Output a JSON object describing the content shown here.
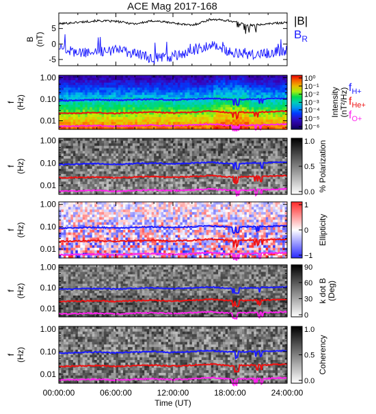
{
  "title": "ACE Mag 2017-168",
  "xaxis": {
    "label": "Time (UT)",
    "ticks": [
      "00:00:00",
      "06:00:00",
      "12:00:00",
      "18:00:00",
      "24:00:00"
    ],
    "range_hours": [
      0,
      24
    ]
  },
  "panels": [
    {
      "id": "b",
      "ylabel": "B",
      "yunit": "(nT)",
      "yticks": [
        "5",
        "0",
        "-5"
      ],
      "legend": [
        {
          "text": "|B|",
          "sub": "",
          "color": "#000000"
        },
        {
          "text": "B",
          "sub": "R",
          "color": "#1a1aff"
        }
      ]
    },
    {
      "id": "intensity",
      "ylabel": "f",
      "yunit": "(Hz)",
      "yticks": [
        "1.00",
        "0.10",
        "0.01"
      ],
      "colorbar": {
        "label1": "Intensity",
        "label2": "(nT²/Hz)",
        "ticks": [
          "10⁰",
          "10⁻¹",
          "10⁻²",
          "10⁻³",
          "10⁻⁴",
          "10⁻⁵",
          "10⁻⁶"
        ]
      },
      "legend": [
        {
          "text": "f",
          "sub": "H+",
          "color": "#1a1aff"
        },
        {
          "text": "f",
          "sub": "He+",
          "color": "#ee1111"
        },
        {
          "text": "f",
          "sub": "O+",
          "color": "#ff22ee"
        }
      ]
    },
    {
      "id": "polarization",
      "ylabel": "f",
      "yunit": "(Hz)",
      "yticks": [
        "1.00",
        "0.10",
        "0.01"
      ],
      "colorbar": {
        "label1": "% Polarization",
        "label2": "",
        "ticks": [
          "1.0",
          "0.5",
          "0.0"
        ]
      }
    },
    {
      "id": "ellipticity",
      "ylabel": "f",
      "yunit": "(Hz)",
      "yticks": [
        "1.00",
        "0.10",
        "0.01"
      ],
      "colorbar": {
        "label1": "Ellipticity",
        "label2": "",
        "ticks": [
          "1",
          "0",
          "−1"
        ]
      }
    },
    {
      "id": "kdotb",
      "ylabel": "f",
      "yunit": "(Hz)",
      "yticks": [
        "1.00",
        "0.10",
        "0.01"
      ],
      "colorbar": {
        "label1": "k dot B",
        "label2": "(Deg)",
        "ticks": [
          "90",
          "60",
          "30",
          "0"
        ]
      }
    },
    {
      "id": "coherency",
      "ylabel": "f",
      "yunit": "(Hz)",
      "yticks": [
        "1.00",
        "0.10",
        "0.01"
      ],
      "colorbar": {
        "label1": "Coherency",
        "label2": "",
        "ticks": [
          "1.0",
          "0.5",
          "0.0"
        ]
      }
    }
  ],
  "chart_data": {
    "type": "line",
    "title": "ACE Mag 2017-168",
    "xlabel": "Time (UT)",
    "x_hours": [
      0,
      2,
      4,
      6,
      8,
      10,
      12,
      14,
      16,
      18,
      20,
      22,
      24
    ],
    "b_panel": {
      "ylim": [
        -7,
        10
      ],
      "series": [
        {
          "name": "|B|",
          "color": "#000000",
          "values": [
            6.5,
            7.0,
            7.5,
            7.3,
            6.5,
            7.5,
            6.8,
            6.0,
            8.0,
            7.5,
            6.0,
            6.5,
            7.0
          ]
        },
        {
          "name": "B_R",
          "color": "#1a1aff",
          "values": [
            -1.0,
            -3.0,
            -2.5,
            -2.0,
            -3.0,
            -5.0,
            -4.0,
            -2.5,
            0.0,
            -2.5,
            -3.5,
            -3.0,
            -2.0
          ]
        }
      ]
    },
    "frequency_panels": {
      "ylim_hz": [
        0.004,
        1.3
      ],
      "log_scale": true,
      "series": [
        {
          "name": "f_H+",
          "color": "#1a1aff",
          "values": [
            0.085,
            0.09,
            0.095,
            0.088,
            0.095,
            0.1,
            0.092,
            0.1,
            0.11,
            0.095,
            0.1,
            0.105,
            0.11
          ]
        },
        {
          "name": "f_He+",
          "color": "#ee1111",
          "values": [
            0.022,
            0.023,
            0.024,
            0.022,
            0.024,
            0.025,
            0.023,
            0.025,
            0.028,
            0.024,
            0.025,
            0.026,
            0.028
          ]
        },
        {
          "name": "f_O+",
          "color": "#ff22ee",
          "values": [
            0.0055,
            0.0057,
            0.006,
            0.0055,
            0.006,
            0.0063,
            0.0058,
            0.0063,
            0.007,
            0.006,
            0.0063,
            0.0065,
            0.007
          ]
        }
      ]
    }
  },
  "colors": {
    "text": "#000000",
    "h_plus": "#1a1aff",
    "he_plus": "#ee1111",
    "o_plus": "#ff22ee"
  }
}
